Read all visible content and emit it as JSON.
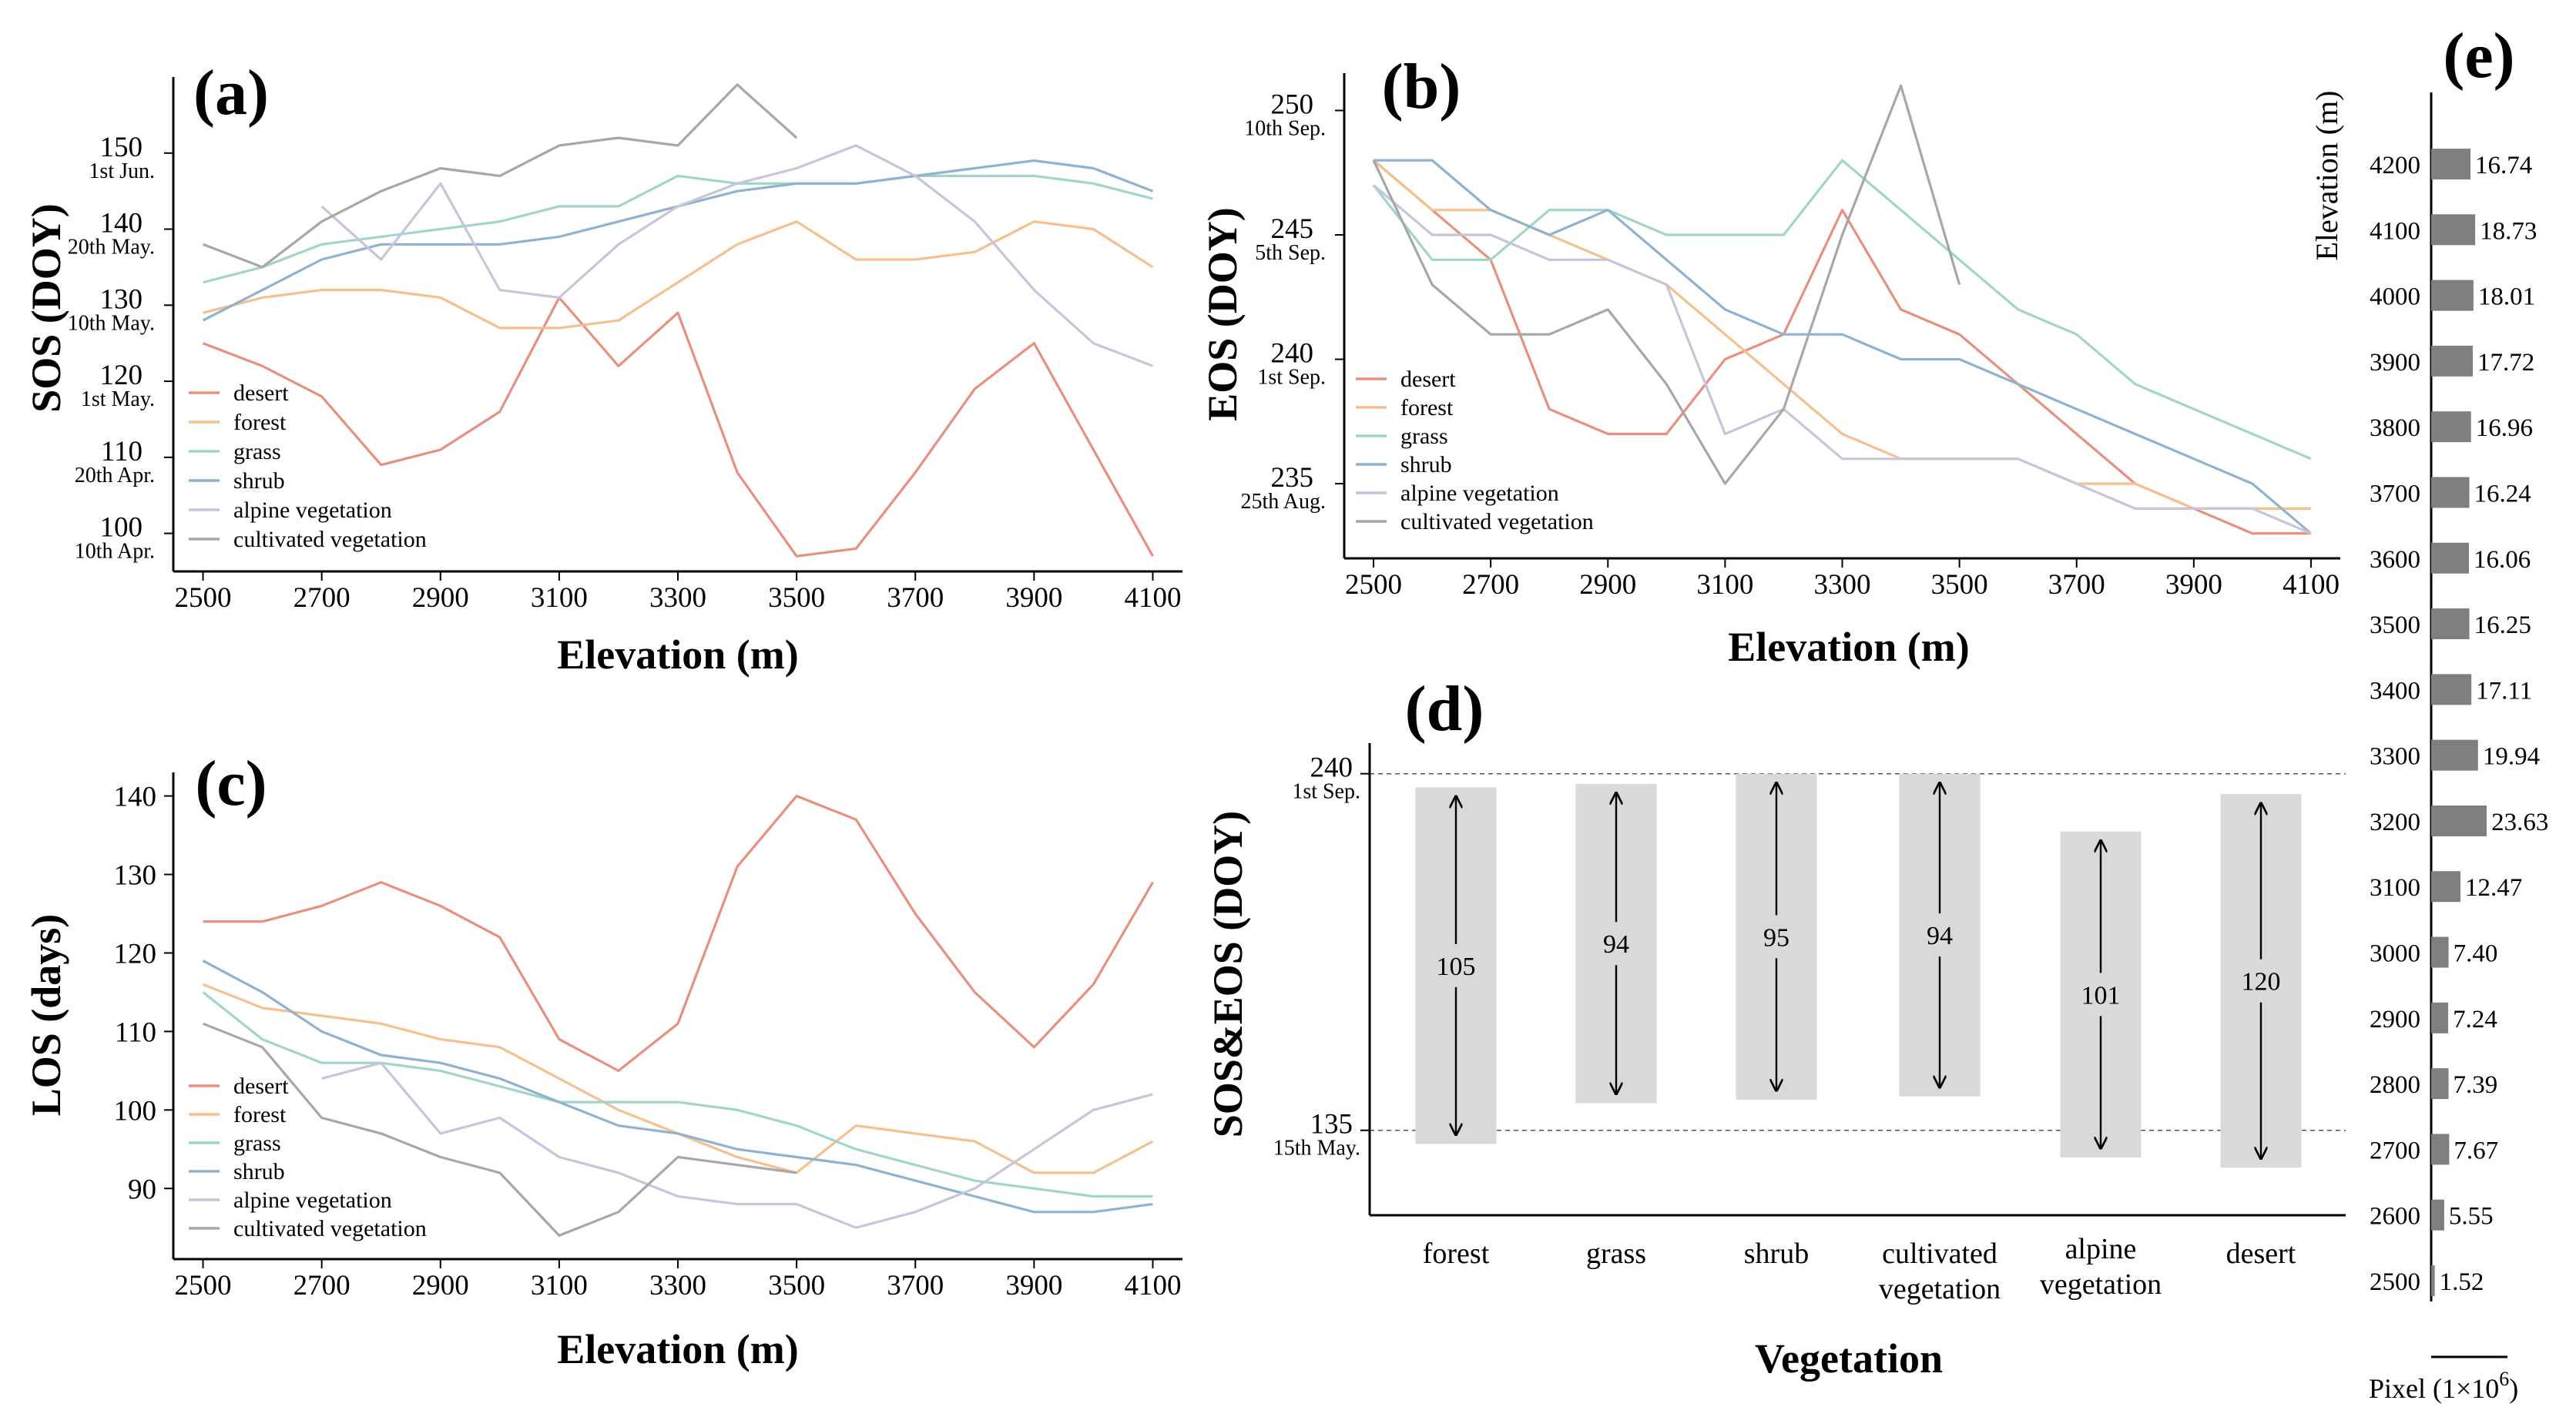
{
  "chart_data": [
    {
      "id": "a",
      "panel_label": "(a)",
      "type": "line",
      "xlabel": "Elevation (m)",
      "ylabel": "SOS (DOY)",
      "xlim": [
        2450,
        4150
      ],
      "ylim": [
        95,
        160
      ],
      "x_ticks": [
        2500,
        2700,
        2900,
        3100,
        3300,
        3500,
        3700,
        3900,
        4100
      ],
      "y_ticks": [
        {
          "value": 100,
          "label": "100",
          "sub": "10th Apr."
        },
        {
          "value": 110,
          "label": "110",
          "sub": "20th Apr."
        },
        {
          "value": 120,
          "label": "120",
          "sub": "1st May."
        },
        {
          "value": 130,
          "label": "130",
          "sub": "10th May."
        },
        {
          "value": 140,
          "label": "140",
          "sub": "20th May."
        },
        {
          "value": 150,
          "label": "150",
          "sub": "1st Jun."
        }
      ],
      "series": [
        {
          "name": "desert",
          "x": [
            2500,
            2600,
            2700,
            2800,
            2900,
            3000,
            3100,
            3200,
            3300,
            3400,
            3500,
            3600,
            3700,
            3800,
            3900,
            4000,
            4100
          ],
          "values": [
            125,
            122,
            118,
            109,
            111,
            116,
            131,
            122,
            129,
            108,
            97,
            98,
            108,
            119,
            125,
            111,
            97
          ]
        },
        {
          "name": "forest",
          "x": [
            2500,
            2600,
            2700,
            2800,
            2900,
            3000,
            3100,
            3200,
            3300,
            3400,
            3500,
            3600,
            3700,
            3800,
            3900,
            4000,
            4100
          ],
          "values": [
            129,
            131,
            132,
            132,
            131,
            127,
            127,
            128,
            133,
            138,
            141,
            136,
            136,
            137,
            141,
            140,
            135
          ]
        },
        {
          "name": "grass",
          "x": [
            2500,
            2600,
            2700,
            2800,
            2900,
            3000,
            3100,
            3200,
            3300,
            3400,
            3500,
            3600,
            3700,
            3800,
            3900,
            4000,
            4100
          ],
          "values": [
            133,
            135,
            138,
            139,
            140,
            141,
            143,
            143,
            147,
            146,
            146,
            146,
            147,
            147,
            147,
            146,
            144
          ]
        },
        {
          "name": "shrub",
          "x": [
            2500,
            2600,
            2700,
            2800,
            2900,
            3000,
            3100,
            3200,
            3300,
            3400,
            3500,
            3600,
            3700,
            3800,
            3900,
            4000,
            4100
          ],
          "values": [
            128,
            132,
            136,
            138,
            138,
            138,
            139,
            141,
            143,
            145,
            146,
            146,
            147,
            148,
            149,
            148,
            145
          ]
        },
        {
          "name": "alpine vegetation",
          "x": [
            2700,
            2800,
            2900,
            3000,
            3100,
            3200,
            3300,
            3400,
            3500,
            3600,
            3700,
            3800,
            3900,
            4000,
            4100
          ],
          "values": [
            143,
            136,
            146,
            132,
            131,
            138,
            143,
            146,
            148,
            151,
            147,
            141,
            132,
            125,
            122
          ]
        },
        {
          "name": "cultivated vegetation",
          "x": [
            2500,
            2600,
            2700,
            2800,
            2900,
            3000,
            3100,
            3200,
            3300,
            3400,
            3500
          ],
          "values": [
            138,
            135,
            141,
            145,
            148,
            147,
            151,
            152,
            151,
            159,
            152
          ]
        }
      ]
    },
    {
      "id": "b",
      "panel_label": "(b)",
      "type": "line",
      "xlabel": "Elevation (m)",
      "ylabel": "EOS (DOY)",
      "xlim": [
        2450,
        4150
      ],
      "ylim": [
        232,
        251.5
      ],
      "x_ticks": [
        2500,
        2700,
        2900,
        3100,
        3300,
        3500,
        3700,
        3900,
        4100
      ],
      "y_ticks": [
        {
          "value": 235,
          "label": "235",
          "sub": "25th Aug."
        },
        {
          "value": 240,
          "label": "240",
          "sub": "1st Sep."
        },
        {
          "value": 245,
          "label": "245",
          "sub": "5th Sep."
        },
        {
          "value": 250,
          "label": "250",
          "sub": "10th Sep."
        }
      ],
      "series": [
        {
          "name": "desert",
          "x": [
            2500,
            2600,
            2700,
            2800,
            2900,
            3000,
            3100,
            3200,
            3300,
            3400,
            3500,
            3600,
            3700,
            3800,
            3900,
            4000,
            4100
          ],
          "values": [
            248,
            246,
            244,
            238,
            237,
            237,
            240,
            241,
            246,
            242,
            241,
            239,
            237,
            235,
            234,
            233,
            233
          ]
        },
        {
          "name": "forest",
          "x": [
            2500,
            2600,
            2700,
            2800,
            2900,
            3000,
            3100,
            3200,
            3300,
            3400,
            3500,
            3600,
            3700,
            3800,
            3900,
            4000,
            4100
          ],
          "values": [
            248,
            246,
            246,
            245,
            244,
            243,
            241,
            239,
            237,
            236,
            236,
            236,
            235,
            235,
            234,
            234,
            234
          ]
        },
        {
          "name": "grass",
          "x": [
            2500,
            2600,
            2700,
            2800,
            2900,
            3000,
            3100,
            3200,
            3300,
            3400,
            3500,
            3600,
            3700,
            3800,
            3900,
            4000,
            4100
          ],
          "values": [
            247,
            244,
            244,
            246,
            246,
            245,
            245,
            245,
            248,
            246,
            244,
            242,
            241,
            239,
            238,
            237,
            236
          ]
        },
        {
          "name": "shrub",
          "x": [
            2500,
            2600,
            2700,
            2800,
            2900,
            3000,
            3100,
            3200,
            3300,
            3400,
            3500,
            3600,
            3700,
            3800,
            3900,
            4000,
            4100
          ],
          "values": [
            248,
            248,
            246,
            245,
            246,
            244,
            242,
            241,
            241,
            240,
            240,
            239,
            238,
            237,
            236,
            235,
            233
          ]
        },
        {
          "name": "alpine vegetation",
          "x": [
            2500,
            2600,
            2700,
            2800,
            2900,
            3000,
            3100,
            3200,
            3300,
            3400,
            3500,
            3600,
            3700,
            3800,
            3900,
            4000,
            4100
          ],
          "values": [
            247,
            245,
            245,
            244,
            244,
            243,
            237,
            238,
            236,
            236,
            236,
            236,
            235,
            234,
            234,
            234,
            233
          ]
        },
        {
          "name": "cultivated vegetation",
          "x": [
            2500,
            2600,
            2700,
            2800,
            2900,
            3000,
            3100,
            3200,
            3300,
            3400,
            3500
          ],
          "values": [
            248,
            243,
            241,
            241,
            242,
            239,
            235,
            238,
            245,
            251,
            243
          ]
        }
      ]
    },
    {
      "id": "c",
      "panel_label": "(c)",
      "type": "line",
      "xlabel": "Elevation (m)",
      "ylabel": "LOS (days)",
      "xlim": [
        2450,
        4150
      ],
      "ylim": [
        81,
        143
      ],
      "x_ticks": [
        2500,
        2700,
        2900,
        3100,
        3300,
        3500,
        3700,
        3900,
        4100
      ],
      "y_ticks": [
        {
          "value": 90,
          "label": "90"
        },
        {
          "value": 100,
          "label": "100"
        },
        {
          "value": 110,
          "label": "110"
        },
        {
          "value": 120,
          "label": "120"
        },
        {
          "value": 130,
          "label": "130"
        },
        {
          "value": 140,
          "label": "140"
        }
      ],
      "series": [
        {
          "name": "desert",
          "x": [
            2500,
            2600,
            2700,
            2800,
            2900,
            3000,
            3100,
            3200,
            3300,
            3400,
            3500,
            3600,
            3700,
            3800,
            3900,
            4000,
            4100
          ],
          "values": [
            124,
            124,
            126,
            129,
            126,
            122,
            109,
            105,
            111,
            131,
            140,
            137,
            125,
            115,
            108,
            116,
            129
          ]
        },
        {
          "name": "forest",
          "x": [
            2500,
            2600,
            2700,
            2800,
            2900,
            3000,
            3100,
            3200,
            3300,
            3400,
            3500,
            3600,
            3700,
            3800,
            3900,
            4000,
            4100
          ],
          "values": [
            116,
            113,
            112,
            111,
            109,
            108,
            104,
            100,
            97,
            94,
            92,
            98,
            97,
            96,
            92,
            92,
            96
          ]
        },
        {
          "name": "grass",
          "x": [
            2500,
            2600,
            2700,
            2800,
            2900,
            3000,
            3100,
            3200,
            3300,
            3400,
            3500,
            3600,
            3700,
            3800,
            3900,
            4000,
            4100
          ],
          "values": [
            115,
            109,
            106,
            106,
            105,
            103,
            101,
            101,
            101,
            100,
            98,
            95,
            93,
            91,
            90,
            89,
            89
          ]
        },
        {
          "name": "shrub",
          "x": [
            2500,
            2600,
            2700,
            2800,
            2900,
            3000,
            3100,
            3200,
            3300,
            3400,
            3500,
            3600,
            3700,
            3800,
            3900,
            4000,
            4100
          ],
          "values": [
            119,
            115,
            110,
            107,
            106,
            104,
            101,
            98,
            97,
            95,
            94,
            93,
            91,
            89,
            87,
            87,
            88
          ]
        },
        {
          "name": "alpine vegetation",
          "x": [
            2700,
            2800,
            2900,
            3000,
            3100,
            3200,
            3300,
            3400,
            3500,
            3600,
            3700,
            3800,
            3900,
            4000,
            4100
          ],
          "values": [
            104,
            106,
            97,
            99,
            94,
            92,
            89,
            88,
            88,
            85,
            87,
            90,
            95,
            100,
            102
          ]
        },
        {
          "name": "cultivated vegetation",
          "x": [
            2500,
            2600,
            2700,
            2800,
            2900,
            3000,
            3100,
            3200,
            3300,
            3400,
            3500
          ],
          "values": [
            111,
            108,
            99,
            97,
            94,
            92,
            84,
            87,
            94,
            93,
            92
          ]
        }
      ]
    },
    {
      "id": "d",
      "panel_label": "(d)",
      "type": "bar",
      "xlabel": "Vegetation",
      "ylabel": "SOS&EOS (DOY)",
      "ylim": [
        110,
        249
      ],
      "y_ticks": [
        {
          "value": 135,
          "label": "135",
          "sub": "15th May."
        },
        {
          "value": 240,
          "label": "240",
          "sub": "1st Sep."
        }
      ],
      "reference_lines": [
        135,
        240
      ],
      "categories": [
        "forest",
        "grass",
        "shrub",
        "cultivated vegetation",
        "alpine vegetation",
        "desert"
      ],
      "sos": [
        131,
        143,
        144,
        145,
        127,
        124
      ],
      "eos": [
        236,
        237,
        240,
        240,
        223,
        234
      ],
      "los": [
        105,
        94,
        95,
        94,
        101,
        120
      ],
      "bar_color": "#d9d9d9"
    },
    {
      "id": "e",
      "panel_label": "(e)",
      "type": "bar",
      "orientation": "horizontal",
      "ylabel": "Elevation (m)",
      "xlabel_main": "Pixel (1×10",
      "xlabel_exp": "6",
      "xlabel_close": ")",
      "categories": [
        "4200",
        "4100",
        "4000",
        "3900",
        "3800",
        "3700",
        "3600",
        "3500",
        "3400",
        "3300",
        "3200",
        "3100",
        "3000",
        "2900",
        "2800",
        "2700",
        "2600",
        "2500"
      ],
      "values": [
        16.74,
        18.73,
        18.01,
        17.72,
        16.96,
        16.24,
        16.06,
        16.25,
        17.11,
        19.94,
        23.63,
        12.47,
        7.4,
        7.24,
        7.39,
        7.67,
        5.55,
        1.52
      ],
      "value_labels": [
        "16.74",
        "18.73",
        "18.01",
        "17.72",
        "16.96",
        "16.24",
        "16.06",
        "16.25",
        "17.11",
        "19.94",
        "23.63",
        "12.47",
        "7.40",
        "7.24",
        "7.39",
        "7.67",
        "5.55",
        "1.52"
      ],
      "bar_color": "#7f7f7f"
    }
  ],
  "series_colors": {
    "desert": "#e8907f",
    "forest": "#f4c08d",
    "grass": "#9fd6c8",
    "shrub": "#8fb2cf",
    "alpine vegetation": "#c8c4dc",
    "cultivated vegetation": "#a7a7a7"
  }
}
